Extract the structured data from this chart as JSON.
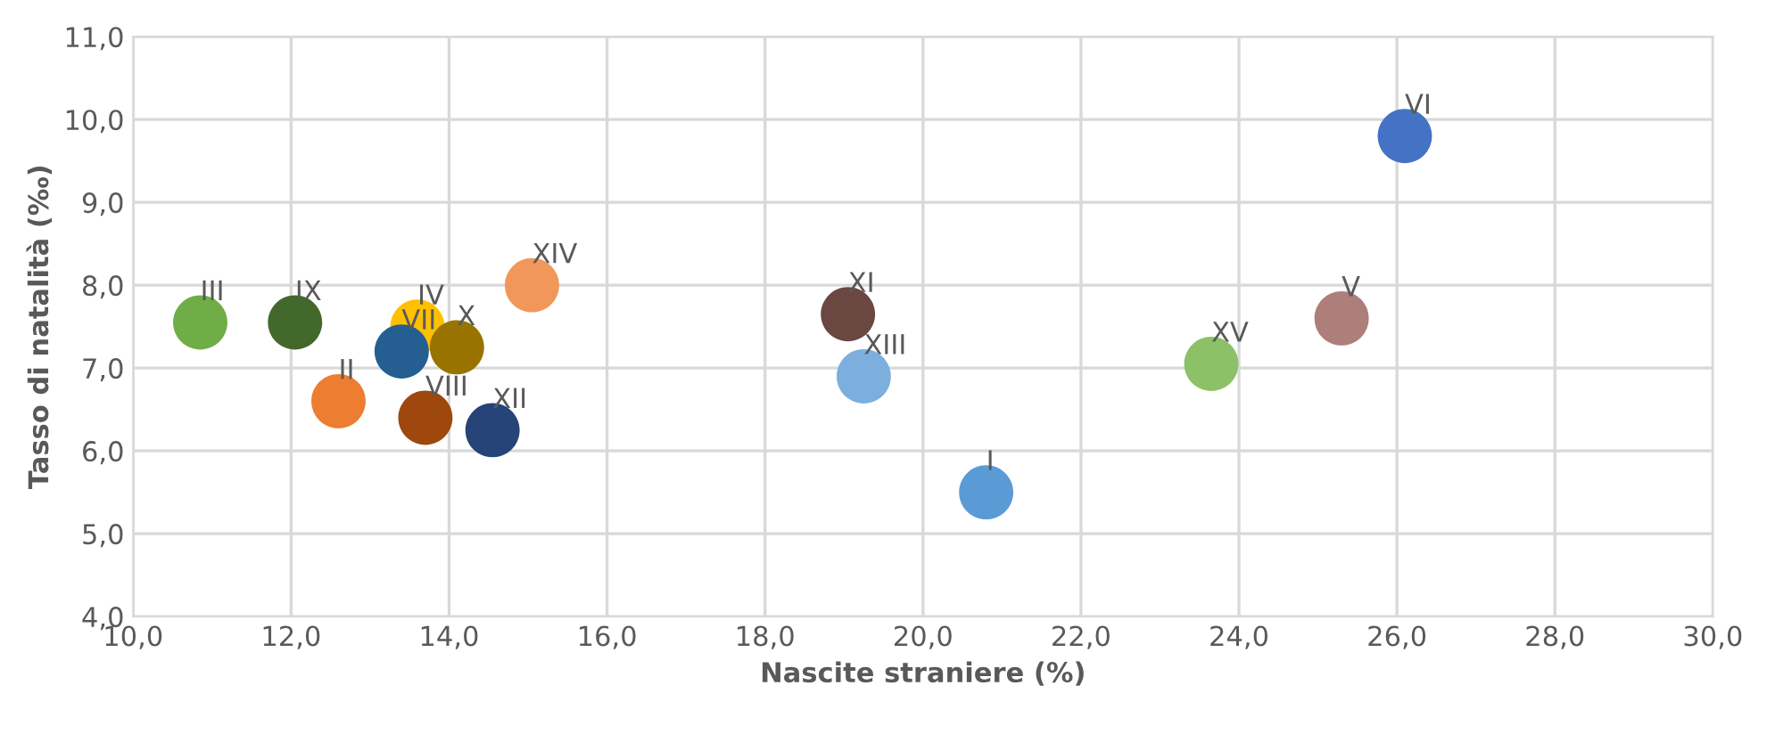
{
  "chart_data": {
    "type": "scatter",
    "xlabel": "Nascite straniere (%)",
    "ylabel": "Tasso di natalità (‰)",
    "xlim": [
      10,
      30
    ],
    "xticks": [
      {
        "value": 10,
        "label": "10,0"
      },
      {
        "value": 12,
        "label": "12,0"
      },
      {
        "value": 14,
        "label": "14,0"
      },
      {
        "value": 16,
        "label": "16,0"
      },
      {
        "value": 18,
        "label": "18,0"
      },
      {
        "value": 20,
        "label": "20,0"
      },
      {
        "value": 22,
        "label": "22,0"
      },
      {
        "value": 24,
        "label": "24,0"
      },
      {
        "value": 26,
        "label": "26,0"
      },
      {
        "value": 28,
        "label": "28,0"
      },
      {
        "value": 30,
        "label": "30,0"
      }
    ],
    "ylim": [
      4,
      11
    ],
    "yticks": [
      {
        "value": 4,
        "label": "4,0"
      },
      {
        "value": 5,
        "label": "5,0"
      },
      {
        "value": 6,
        "label": "6,0"
      },
      {
        "value": 7,
        "label": "7,0"
      },
      {
        "value": 8,
        "label": "8,0"
      },
      {
        "value": 9,
        "label": "9,0"
      },
      {
        "value": 10,
        "label": "10,0"
      },
      {
        "value": 11,
        "label": "11,0"
      }
    ],
    "grid": true,
    "marker": "circle",
    "legend": false,
    "series": [
      {
        "name": "I",
        "color": "#5b9bd5",
        "x": [
          20.8
        ],
        "values": [
          5.5
        ]
      },
      {
        "name": "II",
        "color": "#ed7d31",
        "x": [
          12.6
        ],
        "values": [
          6.6
        ]
      },
      {
        "name": "III",
        "color": "#70ad47",
        "x": [
          10.85
        ],
        "values": [
          7.55
        ]
      },
      {
        "name": "IV",
        "color": "#ffc000",
        "x": [
          13.6
        ],
        "values": [
          7.5
        ]
      },
      {
        "name": "V",
        "color": "#ad7e7a",
        "x": [
          25.3
        ],
        "values": [
          7.6
        ]
      },
      {
        "name": "VI",
        "color": "#4472c4",
        "x": [
          26.1
        ],
        "values": [
          9.8
        ]
      },
      {
        "name": "VII",
        "color": "#255e91",
        "x": [
          13.4
        ],
        "values": [
          7.2
        ]
      },
      {
        "name": "VIII",
        "color": "#9e480e",
        "x": [
          13.7
        ],
        "values": [
          6.4
        ]
      },
      {
        "name": "IX",
        "color": "#43682b",
        "x": [
          12.05
        ],
        "values": [
          7.55
        ]
      },
      {
        "name": "X",
        "color": "#997300",
        "x": [
          14.1
        ],
        "values": [
          7.25
        ]
      },
      {
        "name": "XI",
        "color": "#6b4742",
        "x": [
          19.05
        ],
        "values": [
          7.65
        ]
      },
      {
        "name": "XII",
        "color": "#264478",
        "x": [
          14.55
        ],
        "values": [
          6.25
        ]
      },
      {
        "name": "XIII",
        "color": "#7cafdd",
        "x": [
          19.25
        ],
        "values": [
          6.9
        ]
      },
      {
        "name": "XIV",
        "color": "#f1975a",
        "x": [
          15.05
        ],
        "values": [
          8.0
        ]
      },
      {
        "name": "XV",
        "color": "#8cc168",
        "x": [
          23.65
        ],
        "values": [
          7.05
        ]
      }
    ]
  }
}
